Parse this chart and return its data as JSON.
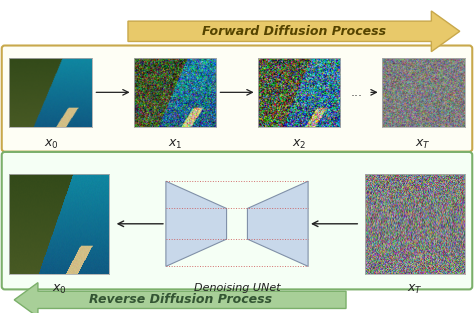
{
  "title_forward": "Forward Diffusion Process",
  "title_reverse": "Reverse Diffusion Process",
  "label_x0": "$x_0$",
  "label_x1": "$x_1$",
  "label_x2": "$x_2$",
  "label_xT": "$x_T$",
  "label_unet": "Denoising UNet",
  "forward_arrow_color": "#C8A84B",
  "forward_arrow_fill": "#E8C96A",
  "reverse_arrow_color": "#7BAF6A",
  "reverse_arrow_fill": "#A8CF98",
  "box_top_color": "#C8A84B",
  "box_bottom_color": "#7BAF6A",
  "unet_fill": "#C8D8EA",
  "unet_edge": "#8090A8",
  "dots_color": "#444444",
  "arrow_color": "#222222",
  "label_fontsize": 8,
  "title_fontsize": 9,
  "fig_bg": "#FFFFFF",
  "fig_w": 4.74,
  "fig_h": 3.13,
  "dpi": 100
}
